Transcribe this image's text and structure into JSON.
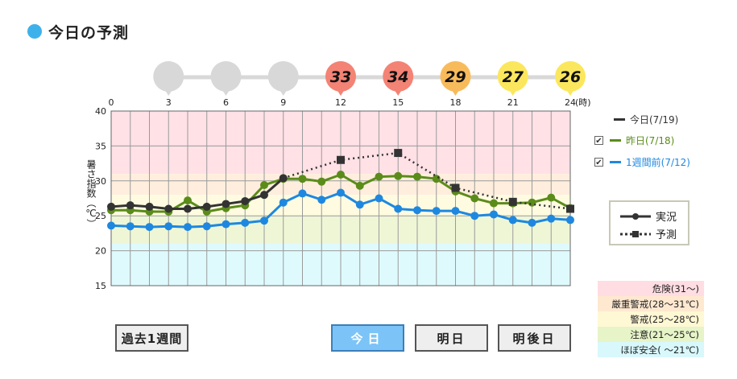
{
  "title": "今日の予測",
  "chart_data": {
    "type": "line",
    "hour_axis_ticks": [
      "0",
      "3",
      "6",
      "9",
      "12",
      "15",
      "18",
      "21",
      "24"
    ],
    "hour_axis_unit": "(時)",
    "ylabel": "暑さ指数（℃）",
    "ylim": [
      15,
      40
    ],
    "y_ticks": [
      "15",
      "20",
      "25",
      "30",
      "35",
      "40"
    ],
    "x_range": [
      0,
      24
    ],
    "grid": true,
    "bands": [
      {
        "label": "危険(31〜)",
        "from": 31,
        "to": 40,
        "color": "#ffe1e6"
      },
      {
        "label": "厳重警戒(28〜31℃)",
        "from": 28,
        "to": 31,
        "color": "#ffeedd"
      },
      {
        "label": "警戒(25〜28℃)",
        "from": 25,
        "to": 28,
        "color": "#fffbe0"
      },
      {
        "label": "注意(21〜25℃)",
        "from": 21,
        "to": 25,
        "color": "#eef6d6"
      },
      {
        "label": "ほぼ安全( 〜21℃)",
        "from": 15,
        "to": 21,
        "color": "#dffafd"
      }
    ],
    "series": [
      {
        "name": "今日(7/19)",
        "color": "#333333",
        "style": "solid",
        "marker": "circle",
        "x": [
          0,
          1,
          2,
          3,
          4,
          5,
          6,
          7,
          8,
          9
        ],
        "values": [
          26.3,
          26.5,
          26.3,
          26.0,
          26.0,
          26.3,
          26.7,
          27.1,
          28.0,
          30.4
        ]
      },
      {
        "name": "今日(7/19)",
        "color": "#333333",
        "style": "dotted",
        "marker": "square",
        "x": [
          9,
          12,
          15,
          18,
          21,
          24
        ],
        "values": [
          30.4,
          33.0,
          34.0,
          29.0,
          27.0,
          26.0
        ]
      },
      {
        "name": "昨日(7/18)",
        "color": "#5b8c1a",
        "style": "solid",
        "marker": "circle",
        "x": [
          0,
          1,
          2,
          3,
          4,
          5,
          6,
          7,
          8,
          9,
          10,
          11,
          12,
          13,
          14,
          15,
          16,
          17,
          18,
          19,
          20,
          21,
          22,
          23,
          24
        ],
        "values": [
          25.8,
          25.8,
          25.6,
          25.6,
          27.2,
          25.6,
          26.1,
          26.5,
          29.4,
          30.3,
          30.3,
          29.9,
          30.9,
          29.3,
          30.6,
          30.7,
          30.6,
          30.3,
          28.5,
          27.5,
          26.8,
          26.8,
          26.9,
          27.6,
          26.1
        ]
      },
      {
        "name": "1週間前(7/12)",
        "color": "#1e88e0",
        "style": "solid",
        "marker": "circle",
        "x": [
          0,
          1,
          2,
          3,
          4,
          5,
          6,
          7,
          8,
          9,
          10,
          11,
          12,
          13,
          14,
          15,
          16,
          17,
          18,
          19,
          20,
          21,
          22,
          23,
          24
        ],
        "values": [
          23.6,
          23.5,
          23.4,
          23.5,
          23.4,
          23.5,
          23.8,
          24.0,
          24.3,
          26.9,
          28.2,
          27.3,
          28.3,
          26.6,
          27.5,
          26.0,
          25.8,
          25.7,
          25.7,
          25.0,
          25.2,
          24.4,
          24.0,
          24.6,
          24.4
        ]
      }
    ],
    "forecast_pins": [
      {
        "hour": 3,
        "value": "",
        "color": "#d8d8d8"
      },
      {
        "hour": 6,
        "value": "",
        "color": "#d8d8d8"
      },
      {
        "hour": 9,
        "value": "",
        "color": "#d8d8d8"
      },
      {
        "hour": 12,
        "value": "33",
        "color": "#f38375"
      },
      {
        "hour": 15,
        "value": "34",
        "color": "#f38375"
      },
      {
        "hour": 18,
        "value": "29",
        "color": "#f8bb5c"
      },
      {
        "hour": 21,
        "value": "27",
        "color": "#fbe75d"
      },
      {
        "hour": 24,
        "value": "26",
        "color": "#fbe75d"
      }
    ]
  },
  "legend": {
    "today": "今日(7/19)",
    "yesterday": "昨日(7/18)",
    "week_ago": "1週間前(7/12)",
    "checkbox_mark": "✔"
  },
  "style_legend": {
    "actual": "実況",
    "forecast": "予測"
  },
  "level_legend": [
    {
      "label": "危険(31〜)",
      "color": "#ffdde3"
    },
    {
      "label": "厳重警戒(28〜31℃)",
      "color": "#ffe8d0"
    },
    {
      "label": "警戒(25〜28℃)",
      "color": "#fff8d4"
    },
    {
      "label": "注意(21〜25℃)",
      "color": "#e6f4c8"
    },
    {
      "label": "ほぼ安全( 〜21℃)",
      "color": "#d8f8fc"
    }
  ],
  "buttons": {
    "past_week": "過去1週間",
    "today": "今日",
    "tomorrow": "明日",
    "day_after": "明後日"
  }
}
